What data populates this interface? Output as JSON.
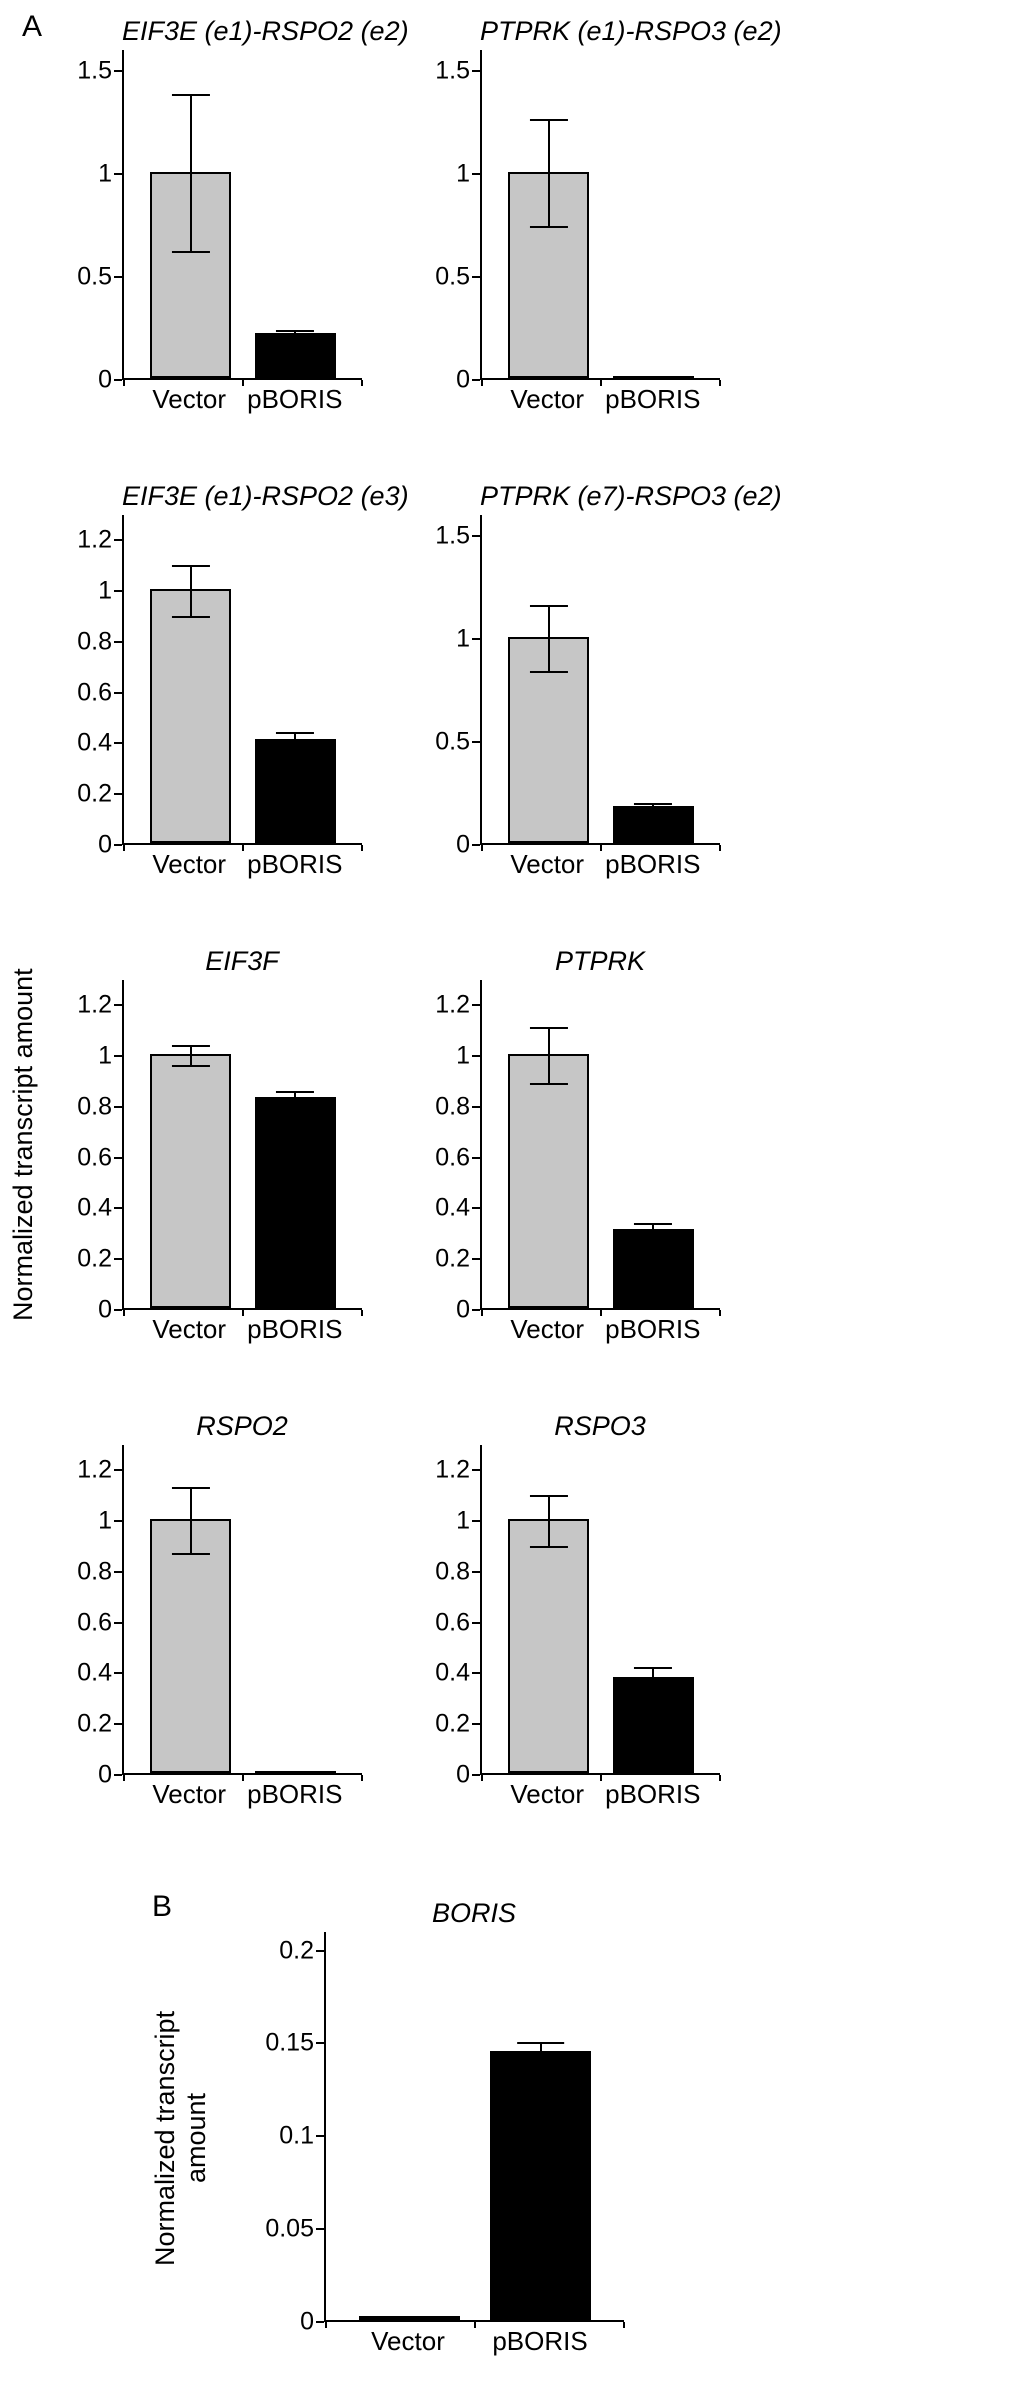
{
  "figure": {
    "panel_a_label": "A",
    "panel_b_label": "B",
    "panel_a_ylabel": "Normalized transcript amount",
    "panel_b_ylabel_lines": [
      "Normalized transcript",
      "amount"
    ],
    "colors": {
      "vector_bar": "#c6c6c6",
      "pboris_bar": "#000000",
      "axis": "#000000"
    }
  },
  "chart_data": [
    {
      "id": "eif3e-e1-rspo2-e2",
      "type": "bar",
      "panel": "A",
      "title": "EIF3E (e1)-RSPO2 (e2)",
      "categories": [
        "Vector",
        "pBORIS"
      ],
      "values": [
        1.0,
        0.22
      ],
      "errors": [
        0.38,
        0.02
      ],
      "bar_colors": [
        "#c6c6c6",
        "#000000"
      ],
      "ylim": [
        0,
        1.6
      ],
      "yticks": [
        0,
        0.5,
        1,
        1.5
      ],
      "ytick_labels": [
        "0",
        "0.5",
        "1",
        "1.5"
      ],
      "xlabel": "",
      "ylabel": "Normalized transcript amount",
      "grid": false,
      "legend": false
    },
    {
      "id": "ptprk-e1-rspo3-e2",
      "type": "bar",
      "panel": "A",
      "title": "PTPRK (e1)-RSPO3 (e2)",
      "categories": [
        "Vector",
        "pBORIS"
      ],
      "values": [
        1.0,
        0.005
      ],
      "errors": [
        0.26,
        0
      ],
      "bar_colors": [
        "#c6c6c6",
        "#000000"
      ],
      "ylim": [
        0,
        1.6
      ],
      "yticks": [
        0,
        0.5,
        1,
        1.5
      ],
      "ytick_labels": [
        "0",
        "0.5",
        "1",
        "1.5"
      ],
      "xlabel": "",
      "ylabel": "Normalized transcript amount",
      "grid": false,
      "legend": false
    },
    {
      "id": "eif3e-e1-rspo2-e3",
      "type": "bar",
      "panel": "A",
      "title": "EIF3E (e1)-RSPO2 (e3)",
      "categories": [
        "Vector",
        "pBORIS"
      ],
      "values": [
        1.0,
        0.41
      ],
      "errors": [
        0.1,
        0.03
      ],
      "bar_colors": [
        "#c6c6c6",
        "#000000"
      ],
      "ylim": [
        0,
        1.3
      ],
      "yticks": [
        0,
        0.2,
        0.4,
        0.6,
        0.8,
        1,
        1.2
      ],
      "ytick_labels": [
        "0",
        "0.2",
        "0.4",
        "0.6",
        "0.8",
        "1",
        "1.2"
      ],
      "xlabel": "",
      "ylabel": "Normalized transcript amount",
      "grid": false,
      "legend": false
    },
    {
      "id": "ptprk-e7-rspo3-e2",
      "type": "bar",
      "panel": "A",
      "title": "PTPRK (e7)-RSPO3 (e2)",
      "categories": [
        "Vector",
        "pBORIS"
      ],
      "values": [
        1.0,
        0.18
      ],
      "errors": [
        0.16,
        0.02
      ],
      "bar_colors": [
        "#c6c6c6",
        "#000000"
      ],
      "ylim": [
        0,
        1.6
      ],
      "yticks": [
        0,
        0.5,
        1,
        1.5
      ],
      "ytick_labels": [
        "0",
        "0.5",
        "1",
        "1.5"
      ],
      "xlabel": "",
      "ylabel": "Normalized transcript amount",
      "grid": false,
      "legend": false
    },
    {
      "id": "eif3f",
      "type": "bar",
      "panel": "A",
      "title": "EIF3F",
      "categories": [
        "Vector",
        "pBORIS"
      ],
      "values": [
        1.0,
        0.83
      ],
      "errors": [
        0.04,
        0.03
      ],
      "bar_colors": [
        "#c6c6c6",
        "#000000"
      ],
      "ylim": [
        0,
        1.3
      ],
      "yticks": [
        0,
        0.2,
        0.4,
        0.6,
        0.8,
        1,
        1.2
      ],
      "ytick_labels": [
        "0",
        "0.2",
        "0.4",
        "0.6",
        "0.8",
        "1",
        "1.2"
      ],
      "xlabel": "",
      "ylabel": "Normalized transcript amount",
      "grid": false,
      "legend": false
    },
    {
      "id": "ptprk",
      "type": "bar",
      "panel": "A",
      "title": "PTPRK",
      "categories": [
        "Vector",
        "pBORIS"
      ],
      "values": [
        1.0,
        0.31
      ],
      "errors": [
        0.11,
        0.03
      ],
      "bar_colors": [
        "#c6c6c6",
        "#000000"
      ],
      "ylim": [
        0,
        1.3
      ],
      "yticks": [
        0,
        0.2,
        0.4,
        0.6,
        0.8,
        1,
        1.2
      ],
      "ytick_labels": [
        "0",
        "0.2",
        "0.4",
        "0.6",
        "0.8",
        "1",
        "1.2"
      ],
      "xlabel": "",
      "ylabel": "Normalized transcript amount",
      "grid": false,
      "legend": false
    },
    {
      "id": "rspo2",
      "type": "bar",
      "panel": "A",
      "title": "RSPO2",
      "categories": [
        "Vector",
        "pBORIS"
      ],
      "values": [
        1.0,
        0.005
      ],
      "errors": [
        0.13,
        0
      ],
      "bar_colors": [
        "#c6c6c6",
        "#000000"
      ],
      "ylim": [
        0,
        1.3
      ],
      "yticks": [
        0,
        0.2,
        0.4,
        0.6,
        0.8,
        1,
        1.2
      ],
      "ytick_labels": [
        "0",
        "0.2",
        "0.4",
        "0.6",
        "0.8",
        "1",
        "1.2"
      ],
      "xlabel": "",
      "ylabel": "Normalized transcript amount",
      "grid": false,
      "legend": false
    },
    {
      "id": "rspo3",
      "type": "bar",
      "panel": "A",
      "title": "RSPO3",
      "categories": [
        "Vector",
        "pBORIS"
      ],
      "values": [
        1.0,
        0.38
      ],
      "errors": [
        0.1,
        0.04
      ],
      "bar_colors": [
        "#c6c6c6",
        "#000000"
      ],
      "ylim": [
        0,
        1.3
      ],
      "yticks": [
        0,
        0.2,
        0.4,
        0.6,
        0.8,
        1,
        1.2
      ],
      "ytick_labels": [
        "0",
        "0.2",
        "0.4",
        "0.6",
        "0.8",
        "1",
        "1.2"
      ],
      "xlabel": "",
      "ylabel": "Normalized transcript amount",
      "grid": false,
      "legend": false
    },
    {
      "id": "boris",
      "type": "bar",
      "panel": "B",
      "title": "BORIS",
      "categories": [
        "Vector",
        "pBORIS"
      ],
      "values": [
        0.002,
        0.145
      ],
      "errors": [
        0,
        0.005
      ],
      "bar_colors": [
        "#c6c6c6",
        "#000000"
      ],
      "ylim": [
        0,
        0.21
      ],
      "yticks": [
        0,
        0.05,
        0.1,
        0.15,
        0.2
      ],
      "ytick_labels": [
        "0",
        "0.05",
        "0.1",
        "0.15",
        "0.2"
      ],
      "xlabel": "",
      "ylabel": "Normalized transcript amount",
      "grid": false,
      "legend": false
    }
  ]
}
